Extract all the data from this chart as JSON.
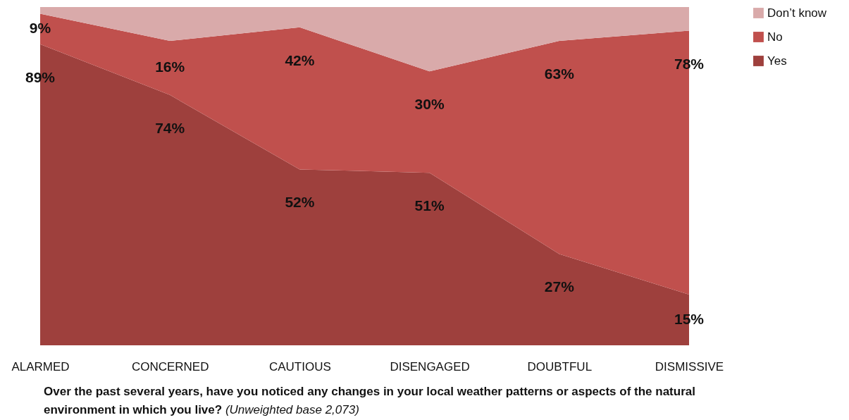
{
  "chart_data": {
    "type": "area",
    "stacked": true,
    "categories": [
      "ALARMED",
      "CONCERNED",
      "CAUTIOUS",
      "DISENGAGED",
      "DOUBTFUL",
      "DISMISSIVE"
    ],
    "series": [
      {
        "name": "Yes",
        "color": "#9e403d",
        "values": [
          89,
          74,
          52,
          51,
          27,
          15
        ],
        "value_labels": [
          "89%",
          "74%",
          "52%",
          "51%",
          "27%",
          "15%"
        ]
      },
      {
        "name": "No",
        "color": "#c0504d",
        "values": [
          9,
          16,
          42,
          30,
          63,
          78
        ],
        "value_labels": [
          "9%",
          "16%",
          "42%",
          "30%",
          "63%",
          "78%"
        ]
      },
      {
        "name": "Don’t know",
        "color": "#d9aaaa",
        "values": [
          2,
          10,
          6,
          19,
          10,
          7
        ]
      }
    ],
    "legend": "right",
    "grid": false,
    "tick_labels": "x",
    "annotations": [
      "Over the past several years, have you noticed any changes in your local weather patterns or aspects of the natural environment in which you live?",
      "(Unweighted base 2,073)"
    ]
  }
}
